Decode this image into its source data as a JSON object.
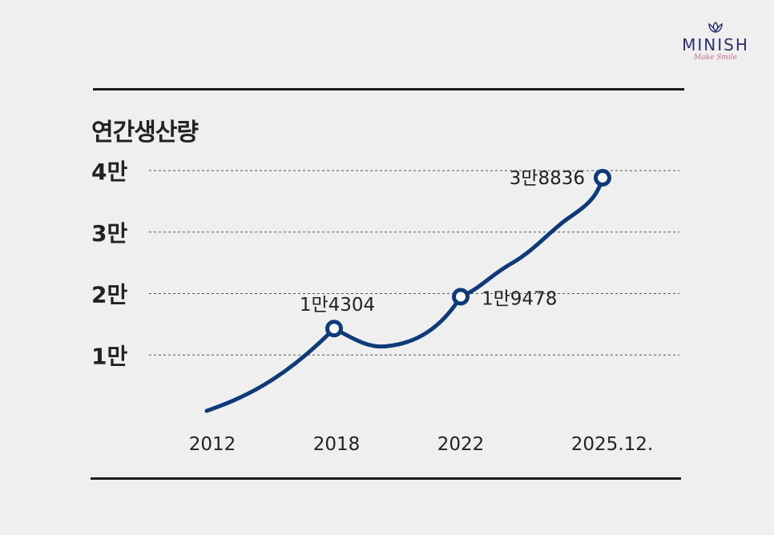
{
  "logo": {
    "name": "MINISH",
    "tagline": "Make Smile",
    "icon": "tulip-icon"
  },
  "colors": {
    "line": "#0f3a7a",
    "text": "#222222",
    "grid": "#555555",
    "logo": "#2a2f6e",
    "logo_tagline": "#d46a8a"
  },
  "chart_data": {
    "type": "line",
    "title": "연간생산량",
    "x": [
      "2012",
      "2018",
      "2022",
      "2025.12."
    ],
    "values": [
      0,
      14304,
      19478,
      38836
    ],
    "marked_points": [
      {
        "x": "2018",
        "value": 14304,
        "label": "1만4304"
      },
      {
        "x": "2022",
        "value": 19478,
        "label": "1만9478"
      },
      {
        "x": "2025.12.",
        "value": 38836,
        "label": "3만8836"
      }
    ],
    "yticks": [
      {
        "value": 10000,
        "label": "1만"
      },
      {
        "value": 20000,
        "label": "2만"
      },
      {
        "value": 30000,
        "label": "3만"
      },
      {
        "value": 40000,
        "label": "4만"
      }
    ],
    "ylim": [
      0,
      40000
    ],
    "grid": true,
    "grid_style": "dashed",
    "xlabel": "",
    "ylabel": ""
  }
}
